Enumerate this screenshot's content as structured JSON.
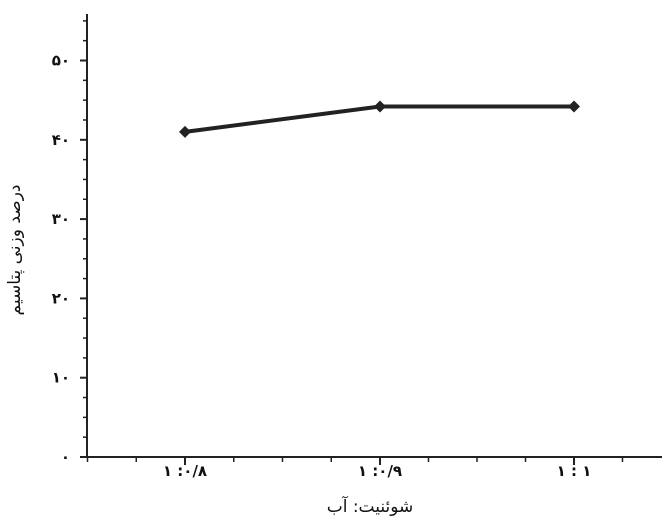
{
  "chart_data": {
    "type": "line",
    "title": "",
    "xlabel": "شوئنیت: آب",
    "ylabel": "درصد وزنی پتاسیم",
    "categories": [
      "۱ :۰/۸",
      "۱ :۰/۹",
      "۱ : ۱"
    ],
    "series": [
      {
        "values": [
          41,
          44.2,
          44.2
        ]
      }
    ],
    "ylim": [
      0,
      50
    ],
    "yticks": [
      0,
      10,
      20,
      30,
      40,
      50
    ],
    "ytick_labels": [
      "۰",
      "۱۰",
      "۲۰",
      "۳۰",
      "۴۰",
      "۵۰"
    ],
    "grid": false,
    "line_color": "#222222",
    "marker": "diamond"
  }
}
